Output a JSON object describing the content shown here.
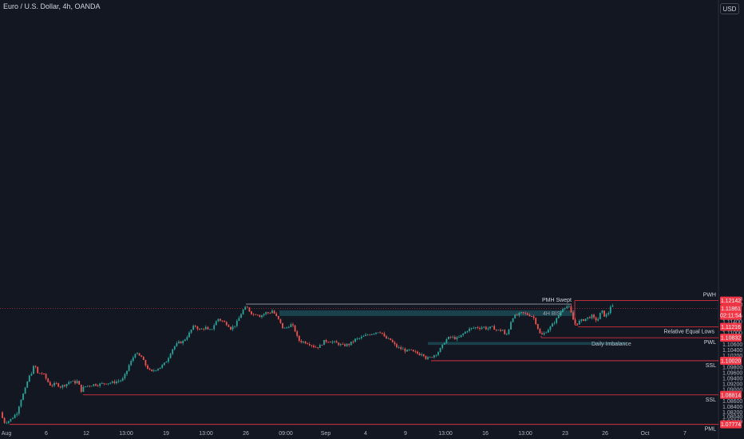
{
  "ui": {
    "currency_button": "USD"
  },
  "colors": {
    "background": "#131722",
    "bull": "#26a69a",
    "bear": "#ef5350",
    "level_line": "#f23645",
    "zone": "#1c4e57",
    "text": "#d1d4dc",
    "axis_text": "#b2b5be"
  },
  "chart_data": {
    "type": "candlestick",
    "title": "Euro / U.S. Dollar, 4h, OANDA",
    "ylim": [
      1.0768,
      1.2236
    ],
    "y_ticks": [
      "1.12200",
      "1.12000",
      "1.11600",
      "1.11400",
      "1.11000",
      "1.10600",
      "1.10400",
      "1.10200",
      "1.09800",
      "1.09600",
      "1.09400",
      "1.09200",
      "1.09000",
      "1.08600",
      "1.08400",
      "1.08200",
      "1.08040",
      "1.07880"
    ],
    "x_ticks": [
      "Aug",
      "6",
      "12",
      "13:00",
      "19",
      "13:00",
      "26",
      "09:00",
      "Sep",
      "4",
      "9",
      "13:00",
      "16",
      "13:00",
      "23",
      "26",
      "Oct",
      "7"
    ],
    "price_labels": {
      "current": "1.11861",
      "countdown": "02:11:54",
      "pwh": "1.12142",
      "relative_equal_lows": "1.11216",
      "pwl": "1.10832",
      "ssl_high": "1.10020",
      "ssl_low": "1.08814",
      "pml": "1.07774"
    },
    "levels": [
      {
        "name": "PWH",
        "price": 1.12142
      },
      {
        "name": "Relative Equal Lows",
        "price": 1.11216
      },
      {
        "name": "PWL",
        "price": 1.10832
      },
      {
        "name": "SSL",
        "price": 1.1002
      },
      {
        "name": "SSL",
        "price": 1.08814
      },
      {
        "name": "PML",
        "price": 1.07774
      }
    ],
    "annotations": {
      "pmh_swept": "PMH Swept",
      "bisi_4h": "4H BISI",
      "daily_imbalance": "Daily Imbalance"
    },
    "path_points": [
      [
        0,
        1.083
      ],
      [
        4,
        1.081
      ],
      [
        8,
        1.0785
      ],
      [
        14,
        1.079
      ],
      [
        18,
        1.08
      ],
      [
        24,
        1.082
      ],
      [
        28,
        1.086
      ],
      [
        34,
        1.09
      ],
      [
        38,
        1.094
      ],
      [
        42,
        1.096
      ],
      [
        46,
        1.099
      ],
      [
        50,
        1.0955
      ],
      [
        54,
        1.096
      ],
      [
        58,
        1.095
      ],
      [
        62,
        1.093
      ],
      [
        66,
        1.0915
      ],
      [
        70,
        1.0918
      ],
      [
        74,
        1.092
      ],
      [
        78,
        1.091
      ],
      [
        82,
        1.0915
      ],
      [
        86,
        1.092
      ],
      [
        90,
        1.093
      ],
      [
        96,
        1.0925
      ],
      [
        100,
        1.093
      ],
      [
        104,
        1.0895
      ],
      [
        108,
        1.091
      ],
      [
        114,
        1.0915
      ],
      [
        120,
        1.0918
      ],
      [
        126,
        1.0918
      ],
      [
        132,
        1.0922
      ],
      [
        138,
        1.0924
      ],
      [
        144,
        1.0925
      ],
      [
        150,
        1.093
      ],
      [
        156,
        1.0935
      ],
      [
        160,
        1.0955
      ],
      [
        164,
        1.0985
      ],
      [
        168,
        1.1005
      ],
      [
        172,
        1.103
      ],
      [
        176,
        1.102
      ],
      [
        180,
        1.1015
      ],
      [
        184,
        1.099
      ],
      [
        188,
        1.0975
      ],
      [
        192,
        1.096
      ],
      [
        196,
        1.097
      ],
      [
        200,
        1.0975
      ],
      [
        204,
        1.098
      ],
      [
        208,
        1.099
      ],
      [
        212,
        1.1005
      ],
      [
        216,
        1.103
      ],
      [
        220,
        1.105
      ],
      [
        226,
        1.1065
      ],
      [
        232,
        1.107
      ],
      [
        236,
        1.1085
      ],
      [
        240,
        1.11
      ],
      [
        244,
        1.112
      ],
      [
        248,
        1.1125
      ],
      [
        252,
        1.111
      ],
      [
        256,
        1.1115
      ],
      [
        260,
        1.112
      ],
      [
        264,
        1.1105
      ],
      [
        268,
        1.1115
      ],
      [
        272,
        1.1135
      ],
      [
        276,
        1.115
      ],
      [
        282,
        1.114
      ],
      [
        288,
        1.113
      ],
      [
        292,
        1.1115
      ],
      [
        296,
        1.1125
      ],
      [
        300,
        1.114
      ],
      [
        304,
        1.1165
      ],
      [
        308,
        1.1185
      ],
      [
        312,
        1.119
      ],
      [
        316,
        1.1175
      ],
      [
        320,
        1.1165
      ],
      [
        324,
        1.117
      ],
      [
        328,
        1.116
      ],
      [
        332,
        1.1165
      ],
      [
        336,
        1.1172
      ],
      [
        340,
        1.117
      ],
      [
        344,
        1.118
      ],
      [
        348,
        1.116
      ],
      [
        352,
        1.1145
      ],
      [
        356,
        1.112
      ],
      [
        360,
        1.1115
      ],
      [
        364,
        1.1125
      ],
      [
        368,
        1.113
      ],
      [
        372,
        1.111
      ],
      [
        376,
        1.1075
      ],
      [
        380,
        1.107
      ],
      [
        384,
        1.1068
      ],
      [
        388,
        1.1065
      ],
      [
        392,
        1.106
      ],
      [
        396,
        1.1052
      ],
      [
        400,
        1.105
      ],
      [
        404,
        1.1055
      ],
      [
        408,
        1.107
      ],
      [
        414,
        1.1072
      ],
      [
        420,
        1.1068
      ],
      [
        426,
        1.1062
      ],
      [
        432,
        1.1055
      ],
      [
        436,
        1.1058
      ],
      [
        440,
        1.106
      ],
      [
        444,
        1.1068
      ],
      [
        448,
        1.1078
      ],
      [
        452,
        1.108
      ],
      [
        456,
        1.1085
      ],
      [
        460,
        1.109
      ],
      [
        464,
        1.1095
      ],
      [
        470,
        1.11
      ],
      [
        476,
        1.1105
      ],
      [
        480,
        1.1105
      ],
      [
        484,
        1.1085
      ],
      [
        488,
        1.1078
      ],
      [
        492,
        1.1075
      ],
      [
        496,
        1.106
      ],
      [
        500,
        1.105
      ],
      [
        504,
        1.1045
      ],
      [
        508,
        1.1042
      ],
      [
        512,
        1.1035
      ],
      [
        516,
        1.104
      ],
      [
        520,
        1.1032
      ],
      [
        524,
        1.103
      ],
      [
        528,
        1.1025
      ],
      [
        532,
        1.103
      ],
      [
        536,
        1.1012
      ],
      [
        540,
        1.101
      ],
      [
        544,
        1.1018
      ],
      [
        548,
        1.1025
      ],
      [
        552,
        1.1035
      ],
      [
        556,
        1.105
      ],
      [
        560,
        1.1072
      ],
      [
        564,
        1.1082
      ],
      [
        568,
        1.1085
      ],
      [
        572,
        1.1082
      ],
      [
        576,
        1.108
      ],
      [
        580,
        1.109
      ],
      [
        584,
        1.11
      ],
      [
        588,
        1.111
      ],
      [
        592,
        1.1115
      ],
      [
        596,
        1.1118
      ],
      [
        600,
        1.112
      ],
      [
        604,
        1.1118
      ],
      [
        608,
        1.1122
      ],
      [
        612,
        1.1115
      ],
      [
        616,
        1.1118
      ],
      [
        620,
        1.112
      ],
      [
        624,
        1.1112
      ],
      [
        628,
        1.1108
      ],
      [
        632,
        1.1112
      ],
      [
        636,
        1.1085
      ],
      [
        640,
        1.1115
      ],
      [
        644,
        1.1155
      ],
      [
        648,
        1.116
      ],
      [
        652,
        1.1165
      ],
      [
        656,
        1.117
      ],
      [
        660,
        1.1168
      ],
      [
        664,
        1.1165
      ],
      [
        668,
        1.1162
      ],
      [
        672,
        1.115
      ],
      [
        676,
        1.112
      ],
      [
        680,
        1.109
      ],
      [
        684,
        1.1098
      ],
      [
        688,
        1.111
      ],
      [
        692,
        1.112
      ],
      [
        696,
        1.1135
      ],
      [
        700,
        1.115
      ],
      [
        704,
        1.117
      ],
      [
        708,
        1.119
      ],
      [
        712,
        1.1195
      ],
      [
        716,
        1.119
      ],
      [
        720,
        1.115
      ],
      [
        724,
        1.113
      ],
      [
        728,
        1.114
      ],
      [
        732,
        1.1145
      ],
      [
        736,
        1.115
      ],
      [
        740,
        1.1155
      ],
      [
        744,
        1.116
      ],
      [
        748,
        1.1145
      ],
      [
        752,
        1.115
      ],
      [
        756,
        1.118
      ],
      [
        760,
        1.116
      ],
      [
        764,
        1.1165
      ],
      [
        768,
        1.12
      ],
      [
        772,
        1.1185
      ]
    ]
  }
}
